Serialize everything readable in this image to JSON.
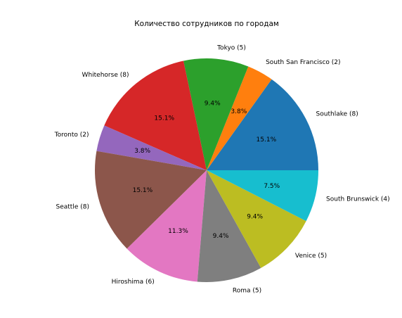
{
  "chart_data": {
    "type": "pie",
    "title": "Количество сотрудников по городам",
    "categories": [
      "Southlake (8)",
      "South San Francisco (2)",
      "Tokyo (5)",
      "Whitehorse (8)",
      "Toronto (2)",
      "Seattle (8)",
      "Hiroshima (6)",
      "Roma (5)",
      "Venice (5)",
      "South Brunswick (4)"
    ],
    "values": [
      15.1,
      3.8,
      9.4,
      15.1,
      3.8,
      15.1,
      11.3,
      9.4,
      9.4,
      7.5
    ],
    "value_labels": [
      "15.1%",
      "3.8%",
      "9.4%",
      "15.1%",
      "3.8%",
      "15.1%",
      "11.3%",
      "9.4%",
      "9.4%",
      "7.5%"
    ],
    "colors": [
      "#1f77b4",
      "#ff7f0e",
      "#2ca02c",
      "#d62728",
      "#9467bd",
      "#8c564b",
      "#e377c2",
      "#7f7f7f",
      "#bcbd22",
      "#17becf"
    ]
  }
}
